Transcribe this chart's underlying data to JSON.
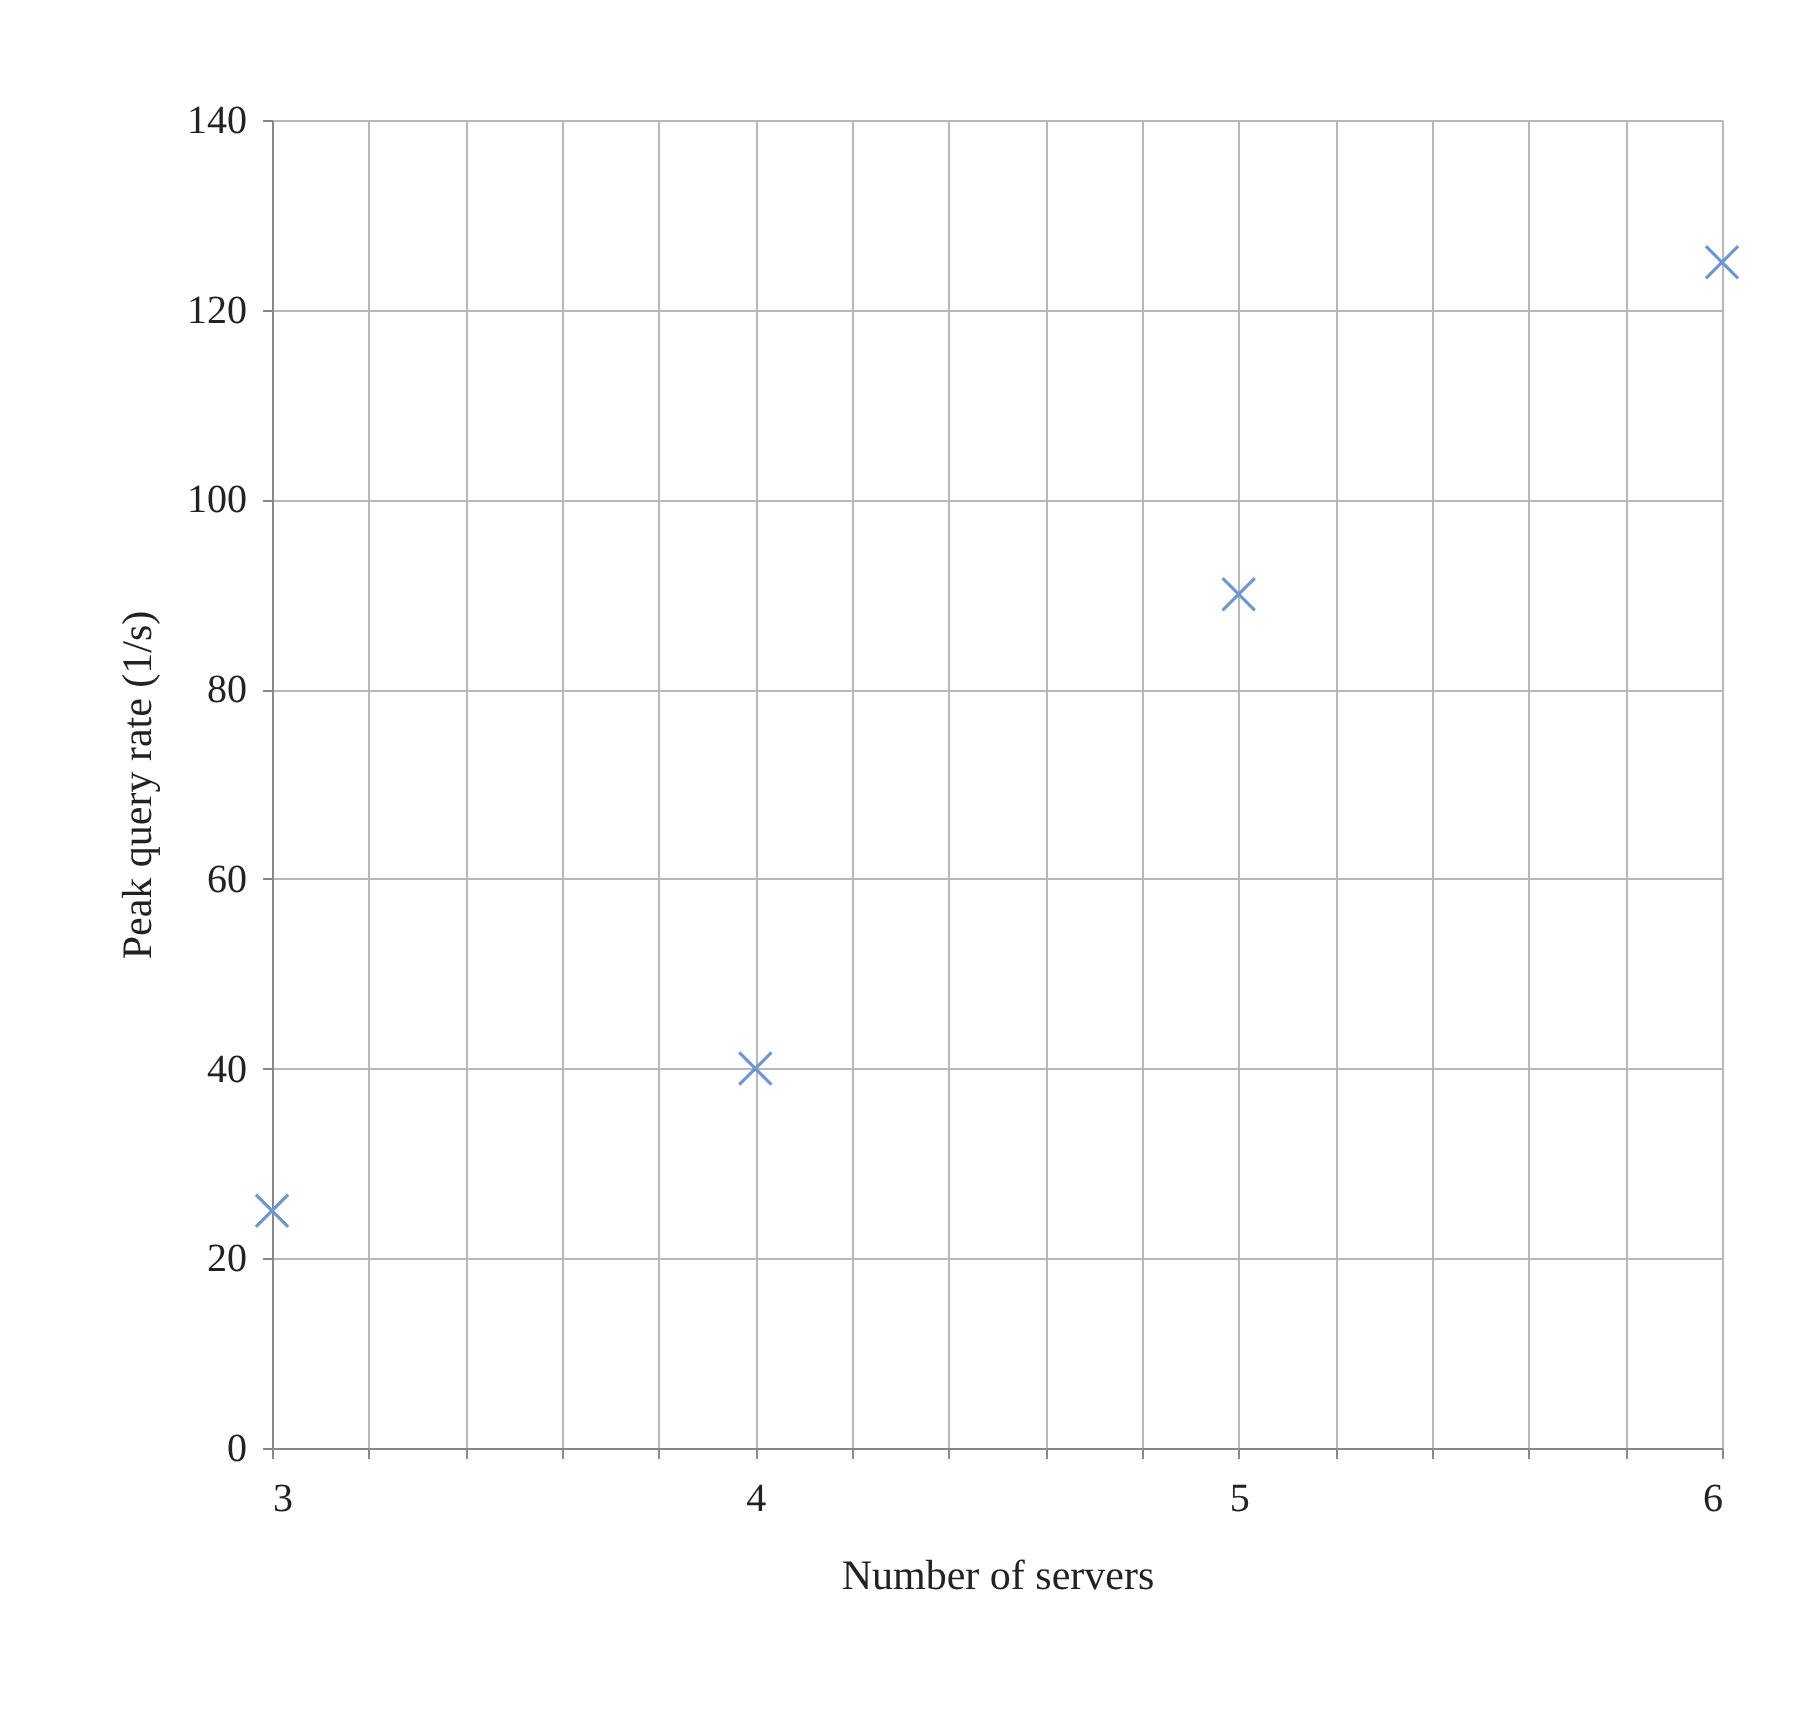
{
  "chart_data": {
    "type": "scatter",
    "xlabel": "Number of servers",
    "ylabel": "Peak query rate (1/s)",
    "x": [
      3,
      4,
      5,
      6
    ],
    "series": [
      {
        "color": "#6f97cf",
        "values": [
          25,
          40,
          90,
          125
        ]
      }
    ],
    "xlim": [
      3,
      6
    ],
    "xticks": [
      3,
      {
        "value": 3.2,
        "label": null
      },
      {
        "value": 3.4,
        "label": null
      },
      {
        "value": 3.6,
        "label": null
      },
      {
        "value": 3.8,
        "label": null
      },
      4,
      {
        "value": 4.2,
        "label": null
      },
      {
        "value": 4.4,
        "label": null
      },
      {
        "value": 4.6,
        "label": null
      },
      {
        "value": 4.8,
        "label": null
      },
      5,
      {
        "value": 5.2,
        "label": null
      },
      {
        "value": 5.4,
        "label": null
      },
      {
        "value": 5.6,
        "label": null
      },
      {
        "value": 5.8,
        "label": null
      },
      6
    ],
    "ylim": [
      0,
      140
    ],
    "yticks": [
      0,
      20,
      40,
      60,
      80,
      100,
      120,
      140
    ],
    "grid": true,
    "marker": "cross"
  }
}
